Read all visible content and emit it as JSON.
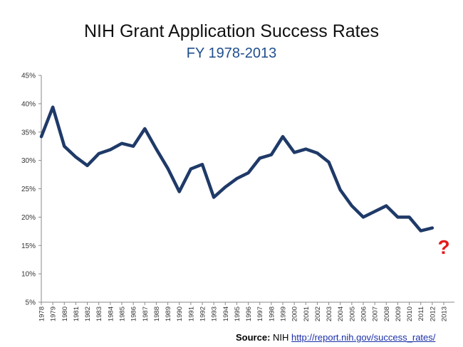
{
  "chart_data": {
    "type": "line",
    "title": "NIH Grant Application Success Rates",
    "subtitle": "FY 1978-2013",
    "xlabel": "",
    "ylabel": "",
    "ylim": [
      5,
      45
    ],
    "ytick_step": 5,
    "ytick_suffix": "%",
    "grid": false,
    "categories": [
      "1978",
      "1979",
      "1980",
      "1981",
      "1982",
      "1983",
      "1984",
      "1985",
      "1986",
      "1987",
      "1988",
      "1989",
      "1990",
      "1991",
      "1992",
      "1993",
      "1994",
      "1995",
      "1996",
      "1997",
      "1998",
      "1999",
      "2000",
      "2001",
      "2002",
      "2003",
      "2004",
      "2005",
      "2006",
      "2007",
      "2008",
      "2009",
      "2010",
      "2011",
      "2012",
      "2013"
    ],
    "series": [
      {
        "name": "",
        "color": "#1f3a68",
        "values": [
          34.2,
          39.4,
          32.5,
          30.6,
          29.1,
          31.2,
          31.9,
          33.0,
          32.5,
          35.6,
          32.0,
          28.6,
          24.5,
          28.5,
          29.3,
          23.5,
          25.3,
          26.8,
          27.8,
          30.4,
          31.0,
          34.2,
          31.4,
          32.0,
          31.3,
          29.7,
          24.8,
          22.0,
          20.0,
          21.0,
          22.0,
          20.0,
          20.0,
          17.6,
          18.1,
          null
        ]
      }
    ],
    "annotations": [
      {
        "text": "?",
        "x": "2013",
        "y": 14.8,
        "color": "#e31a1c"
      }
    ]
  },
  "source": {
    "label": "Source:",
    "name": "NIH",
    "url": "http://report.nih.gov/success_rates/"
  }
}
